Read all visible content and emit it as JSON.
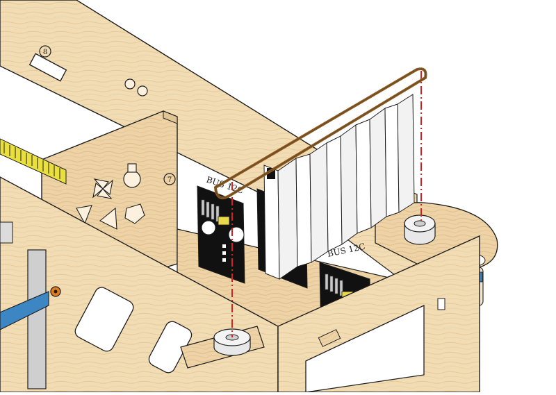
{
  "labels": {
    "bus_left": "BUS 12C",
    "bus_right": "BUS 12C",
    "marker_top": "8",
    "marker_mid": "7"
  },
  "colors": {
    "wood": "#f2dcb3",
    "wood_dark": "#e3c494",
    "wood_edge": "#caa36b",
    "line": "#1d1d1d",
    "wire": "#8a5a22",
    "guide": "#d81e1e",
    "board": "#111111",
    "header_pin": "#c8c8c8",
    "connector": "#e8d84a",
    "ribbon": "#3d86c4",
    "strip": "#e9df3f",
    "accent": "#e27a1e"
  },
  "icons": [
    "pinwheel-icon",
    "lightbulb-icon",
    "triangle-icon",
    "pentagon-icon",
    "number-badge-icon"
  ]
}
